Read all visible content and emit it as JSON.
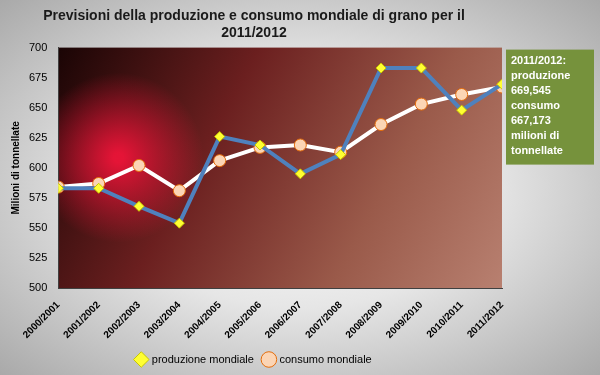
{
  "chart_data": {
    "type": "line",
    "title": [
      "Previsioni della produzione e consumo mondiale di grano per il",
      "2011/2012"
    ],
    "y_label": "Milioni di tonnellate",
    "categories": [
      "2000/2001",
      "2001/2002",
      "2002/2003",
      "2003/2004",
      "2004/2005",
      "2005/2006",
      "2006/2007",
      "2007/2008",
      "2008/2009",
      "2009/2010",
      "2010/2011",
      "2011/2012"
    ],
    "series": [
      {
        "name": "produzione mondiale",
        "color": "#4f81bd",
        "marker": "diamond",
        "values": [
          583,
          583,
          568,
          554,
          626,
          619,
          595,
          611,
          683,
          683,
          648,
          669.545
        ]
      },
      {
        "name": "consumo mondiale",
        "color": "#ffffff",
        "marker": "circle",
        "values": [
          584,
          587,
          602,
          581,
          606,
          617,
          619,
          613,
          636,
          653,
          661,
          667.173
        ]
      }
    ],
    "ylim": [
      500,
      700
    ],
    "yticks": [
      500,
      525,
      550,
      575,
      600,
      625,
      650,
      675,
      700
    ],
    "grid": false,
    "legend": "bottom",
    "annotation": [
      "2011/2012:",
      "produzione",
      "669,545",
      "consumo",
      "667,173",
      "milioni di",
      "tonnellate"
    ]
  }
}
